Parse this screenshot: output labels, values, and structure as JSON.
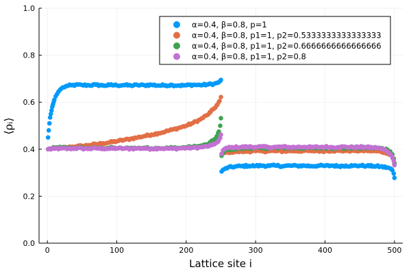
{
  "chart_data": {
    "type": "scatter",
    "title": "",
    "xlabel": "Lattice site i",
    "ylabel": "⟨ρᵢ⟩",
    "xlim": [
      -12,
      512
    ],
    "ylim": [
      0,
      1
    ],
    "xticks": [
      0,
      100,
      200,
      300,
      400,
      500
    ],
    "yticks": [
      0.0,
      0.2,
      0.4,
      0.6,
      0.8,
      1.0
    ],
    "xtick_labels": [
      "0",
      "100",
      "200",
      "300",
      "400",
      "500"
    ],
    "ytick_labels": [
      "0.0",
      "0.2",
      "0.4",
      "0.6",
      "0.8",
      "1.0"
    ],
    "grid": true,
    "legend_position": "top-right",
    "series": [
      {
        "name": "α=0.4, β=0.8, p=1",
        "color": "#009af9",
        "points": [
          [
            1,
            0.45
          ],
          [
            2,
            0.48
          ],
          [
            3,
            0.51
          ],
          [
            4,
            0.535
          ],
          [
            5,
            0.55
          ],
          [
            6,
            0.565
          ],
          [
            7,
            0.58
          ],
          [
            8,
            0.59
          ],
          [
            9,
            0.6
          ],
          [
            10,
            0.61
          ],
          [
            12,
            0.625
          ],
          [
            14,
            0.635
          ],
          [
            16,
            0.645
          ],
          [
            18,
            0.652
          ],
          [
            20,
            0.658
          ],
          [
            23,
            0.663
          ],
          [
            26,
            0.667
          ],
          [
            30,
            0.67
          ],
          [
            35,
            0.672
          ],
          [
            40,
            0.673
          ],
          [
            50,
            0.673
          ],
          [
            60,
            0.672
          ],
          [
            70,
            0.674
          ],
          [
            80,
            0.671
          ],
          [
            90,
            0.673
          ],
          [
            100,
            0.672
          ],
          [
            110,
            0.673
          ],
          [
            120,
            0.671
          ],
          [
            130,
            0.673
          ],
          [
            140,
            0.672
          ],
          [
            150,
            0.674
          ],
          [
            160,
            0.671
          ],
          [
            170,
            0.672
          ],
          [
            180,
            0.673
          ],
          [
            190,
            0.671
          ],
          [
            200,
            0.672
          ],
          [
            210,
            0.674
          ],
          [
            220,
            0.673
          ],
          [
            230,
            0.675
          ],
          [
            240,
            0.678
          ],
          [
            245,
            0.682
          ],
          [
            249,
            0.69
          ],
          [
            250,
            0.695
          ],
          [
            251,
            0.305
          ],
          [
            255,
            0.315
          ],
          [
            260,
            0.322
          ],
          [
            270,
            0.326
          ],
          [
            280,
            0.328
          ],
          [
            290,
            0.329
          ],
          [
            300,
            0.329
          ],
          [
            310,
            0.33
          ],
          [
            320,
            0.329
          ],
          [
            330,
            0.33
          ],
          [
            340,
            0.328
          ],
          [
            350,
            0.33
          ],
          [
            360,
            0.329
          ],
          [
            370,
            0.33
          ],
          [
            380,
            0.328
          ],
          [
            390,
            0.33
          ],
          [
            400,
            0.329
          ],
          [
            410,
            0.33
          ],
          [
            420,
            0.328
          ],
          [
            430,
            0.33
          ],
          [
            440,
            0.329
          ],
          [
            450,
            0.33
          ],
          [
            460,
            0.329
          ],
          [
            470,
            0.328
          ],
          [
            480,
            0.326
          ],
          [
            490,
            0.322
          ],
          [
            494,
            0.318
          ],
          [
            497,
            0.31
          ],
          [
            499,
            0.296
          ],
          [
            500,
            0.278
          ]
        ]
      },
      {
        "name": "α=0.4, β=0.8, p1=1, p2=0.5333333333333333",
        "color": "#e26f46",
        "points": [
          [
            1,
            0.4
          ],
          [
            10,
            0.404
          ],
          [
            20,
            0.406
          ],
          [
            30,
            0.408
          ],
          [
            40,
            0.411
          ],
          [
            50,
            0.414
          ],
          [
            60,
            0.417
          ],
          [
            70,
            0.421
          ],
          [
            80,
            0.425
          ],
          [
            90,
            0.429
          ],
          [
            100,
            0.434
          ],
          [
            110,
            0.439
          ],
          [
            120,
            0.444
          ],
          [
            130,
            0.45
          ],
          [
            140,
            0.456
          ],
          [
            150,
            0.462
          ],
          [
            160,
            0.468
          ],
          [
            170,
            0.475
          ],
          [
            180,
            0.483
          ],
          [
            190,
            0.491
          ],
          [
            200,
            0.5
          ],
          [
            210,
            0.512
          ],
          [
            220,
            0.526
          ],
          [
            230,
            0.545
          ],
          [
            235,
            0.558
          ],
          [
            240,
            0.573
          ],
          [
            245,
            0.59
          ],
          [
            248,
            0.605
          ],
          [
            250,
            0.622
          ],
          [
            251,
            0.38
          ],
          [
            255,
            0.384
          ],
          [
            260,
            0.387
          ],
          [
            270,
            0.389
          ],
          [
            280,
            0.39
          ],
          [
            290,
            0.391
          ],
          [
            300,
            0.392
          ],
          [
            310,
            0.391
          ],
          [
            320,
            0.392
          ],
          [
            330,
            0.392
          ],
          [
            340,
            0.391
          ],
          [
            350,
            0.393
          ],
          [
            360,
            0.392
          ],
          [
            370,
            0.393
          ],
          [
            380,
            0.392
          ],
          [
            390,
            0.393
          ],
          [
            400,
            0.392
          ],
          [
            410,
            0.394
          ],
          [
            420,
            0.393
          ],
          [
            430,
            0.393
          ],
          [
            440,
            0.394
          ],
          [
            450,
            0.393
          ],
          [
            460,
            0.394
          ],
          [
            470,
            0.392
          ],
          [
            480,
            0.39
          ],
          [
            490,
            0.384
          ],
          [
            495,
            0.375
          ],
          [
            498,
            0.36
          ],
          [
            500,
            0.337
          ]
        ]
      },
      {
        "name": "α=0.4, β=0.8, p1=1, p2=0.6666666666666666",
        "color": "#3da44d",
        "points": [
          [
            1,
            0.4
          ],
          [
            10,
            0.405
          ],
          [
            20,
            0.407
          ],
          [
            30,
            0.405
          ],
          [
            40,
            0.404
          ],
          [
            50,
            0.406
          ],
          [
            60,
            0.403
          ],
          [
            70,
            0.405
          ],
          [
            80,
            0.404
          ],
          [
            90,
            0.406
          ],
          [
            100,
            0.404
          ],
          [
            110,
            0.403
          ],
          [
            120,
            0.405
          ],
          [
            130,
            0.404
          ],
          [
            140,
            0.406
          ],
          [
            150,
            0.403
          ],
          [
            160,
            0.405
          ],
          [
            170,
            0.404
          ],
          [
            180,
            0.406
          ],
          [
            190,
            0.405
          ],
          [
            200,
            0.408
          ],
          [
            210,
            0.41
          ],
          [
            220,
            0.413
          ],
          [
            230,
            0.42
          ],
          [
            235,
            0.428
          ],
          [
            240,
            0.44
          ],
          [
            244,
            0.455
          ],
          [
            247,
            0.475
          ],
          [
            249,
            0.5
          ],
          [
            250,
            0.532
          ],
          [
            251,
            0.372
          ],
          [
            255,
            0.392
          ],
          [
            260,
            0.398
          ],
          [
            270,
            0.402
          ],
          [
            280,
            0.404
          ],
          [
            290,
            0.405
          ],
          [
            300,
            0.406
          ],
          [
            310,
            0.404
          ],
          [
            320,
            0.406
          ],
          [
            330,
            0.405
          ],
          [
            340,
            0.407
          ],
          [
            350,
            0.405
          ],
          [
            360,
            0.406
          ],
          [
            370,
            0.404
          ],
          [
            380,
            0.406
          ],
          [
            390,
            0.405
          ],
          [
            400,
            0.407
          ],
          [
            410,
            0.405
          ],
          [
            420,
            0.406
          ],
          [
            430,
            0.404
          ],
          [
            440,
            0.406
          ],
          [
            450,
            0.405
          ],
          [
            460,
            0.406
          ],
          [
            470,
            0.405
          ],
          [
            480,
            0.404
          ],
          [
            490,
            0.398
          ],
          [
            494,
            0.39
          ],
          [
            497,
            0.378
          ],
          [
            499,
            0.36
          ],
          [
            500,
            0.34
          ]
        ]
      },
      {
        "name": "α=0.4, β=0.8, p1=1, p2=0.8",
        "color": "#c271d2",
        "points": [
          [
            1,
            0.4
          ],
          [
            10,
            0.402
          ],
          [
            20,
            0.403
          ],
          [
            30,
            0.402
          ],
          [
            40,
            0.404
          ],
          [
            50,
            0.403
          ],
          [
            60,
            0.402
          ],
          [
            70,
            0.404
          ],
          [
            80,
            0.403
          ],
          [
            90,
            0.402
          ],
          [
            100,
            0.404
          ],
          [
            110,
            0.403
          ],
          [
            120,
            0.402
          ],
          [
            130,
            0.404
          ],
          [
            140,
            0.403
          ],
          [
            150,
            0.402
          ],
          [
            160,
            0.404
          ],
          [
            170,
            0.403
          ],
          [
            180,
            0.402
          ],
          [
            190,
            0.404
          ],
          [
            200,
            0.405
          ],
          [
            210,
            0.406
          ],
          [
            220,
            0.408
          ],
          [
            230,
            0.412
          ],
          [
            236,
            0.416
          ],
          [
            240,
            0.42
          ],
          [
            244,
            0.428
          ],
          [
            247,
            0.438
          ],
          [
            249,
            0.448
          ],
          [
            250,
            0.462
          ],
          [
            251,
            0.38
          ],
          [
            253,
            0.395
          ],
          [
            256,
            0.402
          ],
          [
            260,
            0.406
          ],
          [
            270,
            0.408
          ],
          [
            280,
            0.409
          ],
          [
            290,
            0.41
          ],
          [
            300,
            0.409
          ],
          [
            310,
            0.41
          ],
          [
            320,
            0.408
          ],
          [
            330,
            0.409
          ],
          [
            340,
            0.41
          ],
          [
            350,
            0.408
          ],
          [
            360,
            0.409
          ],
          [
            370,
            0.41
          ],
          [
            380,
            0.408
          ],
          [
            390,
            0.409
          ],
          [
            400,
            0.41
          ],
          [
            410,
            0.408
          ],
          [
            420,
            0.409
          ],
          [
            430,
            0.41
          ],
          [
            440,
            0.408
          ],
          [
            450,
            0.409
          ],
          [
            460,
            0.408
          ],
          [
            470,
            0.407
          ],
          [
            480,
            0.403
          ],
          [
            485,
            0.398
          ],
          [
            490,
            0.39
          ],
          [
            493,
            0.383
          ],
          [
            495,
            0.375
          ],
          [
            497,
            0.365
          ],
          [
            499,
            0.35
          ],
          [
            500,
            0.332
          ]
        ]
      }
    ]
  }
}
